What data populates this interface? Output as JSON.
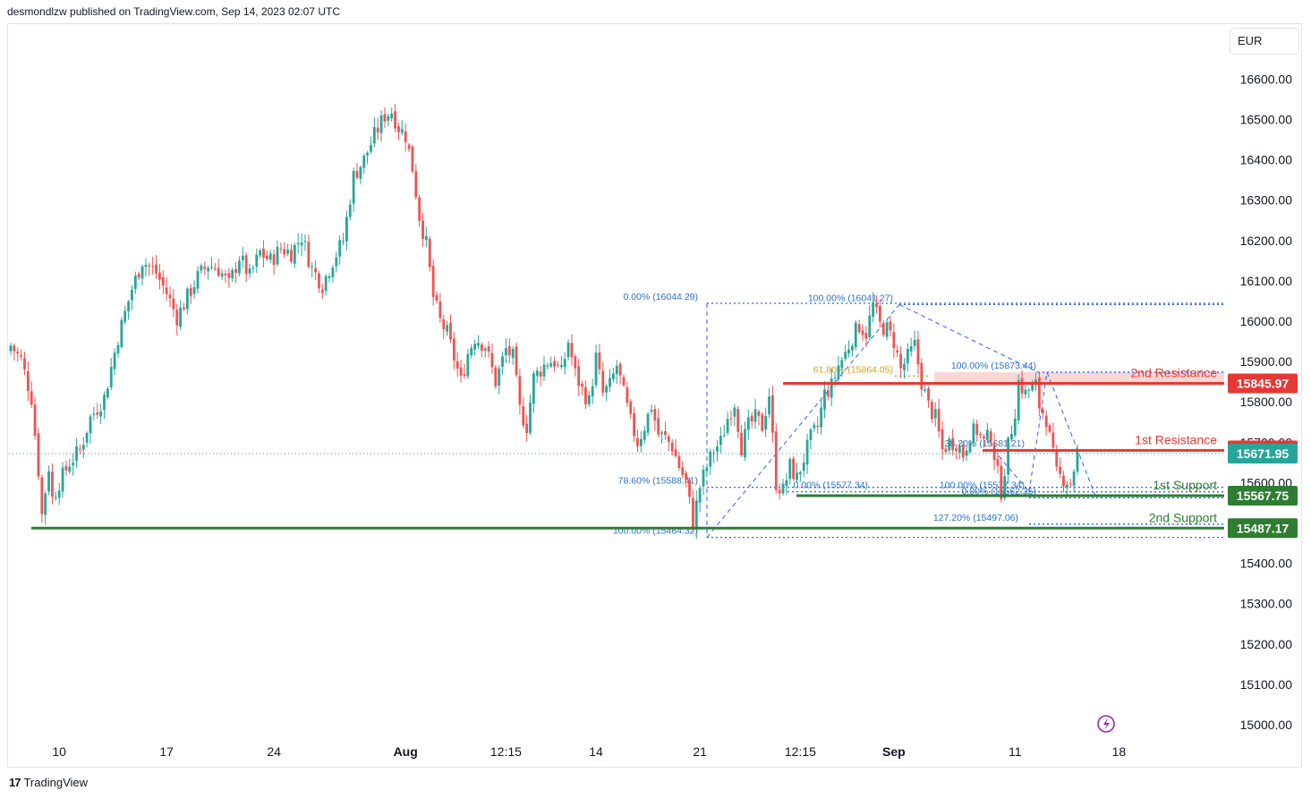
{
  "header": {
    "published": "desmondlzw published on TradingView.com, Sep 14, 2023 02:07 UTC"
  },
  "currency": "EUR",
  "footer": {
    "brand": "TradingView",
    "logo": "17"
  },
  "colors": {
    "up": "#26a69a",
    "down": "#ef5350",
    "fib": "#2962ff",
    "fib_text": "#2a72c8",
    "fib_gold": "#e0a10d",
    "resistance": "#e53935",
    "support": "#2e7d32",
    "resistance_zone": "#f8c9c3",
    "last_price": "#26a69a"
  },
  "chart_data": {
    "type": "candlestick",
    "ylim": [
      14950,
      16680
    ],
    "yticks": [
      15000,
      15100,
      15200,
      15300,
      15400,
      15500,
      15600,
      15700,
      15800,
      15900,
      16000,
      16100,
      16200,
      16300,
      16400,
      16500,
      16600
    ],
    "ytick_labels": [
      "15000.00",
      "15100.00",
      "15200.00",
      "15300.00",
      "15400.00",
      "15500.00",
      "15600.00",
      "15700.00",
      "15800.00",
      "15900.00",
      "16000.00",
      "16100.00",
      "16200.00",
      "16300.00",
      "16400.00",
      "16500.00",
      "16600.00"
    ],
    "xticks": [
      {
        "label": "10",
        "bar": 14
      },
      {
        "label": "17",
        "bar": 45
      },
      {
        "label": "24",
        "bar": 76
      },
      {
        "label": "Aug",
        "bar": 114,
        "bold": true
      },
      {
        "label": "12:15",
        "bar": 143
      },
      {
        "label": "14",
        "bar": 169
      },
      {
        "label": "21",
        "bar": 199
      },
      {
        "label": "12:15",
        "bar": 228
      },
      {
        "label": "Sep",
        "bar": 255,
        "bold": true
      },
      {
        "label": "11",
        "bar": 290
      },
      {
        "label": "18",
        "bar": 320
      }
    ],
    "key_points": [
      [
        0,
        15940
      ],
      [
        3,
        15905
      ],
      [
        6,
        15810
      ],
      [
        8,
        15630
      ],
      [
        9,
        15520
      ],
      [
        11,
        15640
      ],
      [
        12,
        15560
      ],
      [
        14,
        15600
      ],
      [
        17,
        15650
      ],
      [
        20,
        15680
      ],
      [
        23,
        15760
      ],
      [
        27,
        15810
      ],
      [
        31,
        15960
      ],
      [
        35,
        16080
      ],
      [
        38,
        16150
      ],
      [
        42,
        16120
      ],
      [
        45,
        16070
      ],
      [
        48,
        16010
      ],
      [
        51,
        16060
      ],
      [
        54,
        16110
      ],
      [
        57,
        16140
      ],
      [
        60,
        16130
      ],
      [
        63,
        16090
      ],
      [
        66,
        16160
      ],
      [
        69,
        16110
      ],
      [
        72,
        16170
      ],
      [
        75,
        16150
      ],
      [
        78,
        16180
      ],
      [
        81,
        16170
      ],
      [
        84,
        16210
      ],
      [
        87,
        16130
      ],
      [
        90,
        16090
      ],
      [
        93,
        16150
      ],
      [
        96,
        16200
      ],
      [
        99,
        16360
      ],
      [
        102,
        16400
      ],
      [
        105,
        16460
      ],
      [
        108,
        16510
      ],
      [
        110,
        16520
      ],
      [
        112,
        16480
      ],
      [
        114,
        16460
      ],
      [
        116,
        16380
      ],
      [
        118,
        16260
      ],
      [
        120,
        16190
      ],
      [
        122,
        16060
      ],
      [
        124,
        16000
      ],
      [
        126,
        15970
      ],
      [
        128,
        15910
      ],
      [
        130,
        15850
      ],
      [
        132,
        15920
      ],
      [
        134,
        15960
      ],
      [
        137,
        15940
      ],
      [
        140,
        15850
      ],
      [
        143,
        15930
      ],
      [
        145,
        15910
      ],
      [
        147,
        15780
      ],
      [
        149,
        15740
      ],
      [
        151,
        15860
      ],
      [
        153,
        15880
      ],
      [
        155,
        15900
      ],
      [
        157,
        15900
      ],
      [
        159,
        15870
      ],
      [
        161,
        15950
      ],
      [
        163,
        15870
      ],
      [
        165,
        15830
      ],
      [
        167,
        15800
      ],
      [
        169,
        15910
      ],
      [
        171,
        15820
      ],
      [
        173,
        15840
      ],
      [
        175,
        15890
      ],
      [
        177,
        15820
      ],
      [
        179,
        15750
      ],
      [
        181,
        15700
      ],
      [
        183,
        15740
      ],
      [
        185,
        15790
      ],
      [
        187,
        15720
      ],
      [
        189,
        15710
      ],
      [
        191,
        15690
      ],
      [
        193,
        15640
      ],
      [
        195,
        15600
      ],
      [
        197,
        15500
      ],
      [
        199,
        15590
      ],
      [
        201,
        15640
      ],
      [
        203,
        15680
      ],
      [
        205,
        15700
      ],
      [
        207,
        15760
      ],
      [
        209,
        15800
      ],
      [
        211,
        15690
      ],
      [
        213,
        15740
      ],
      [
        215,
        15760
      ],
      [
        217,
        15740
      ],
      [
        219,
        15820
      ],
      [
        221,
        15600
      ],
      [
        223,
        15580
      ],
      [
        225,
        15640
      ],
      [
        227,
        15610
      ],
      [
        229,
        15660
      ],
      [
        231,
        15710
      ],
      [
        233,
        15740
      ],
      [
        235,
        15820
      ],
      [
        237,
        15840
      ],
      [
        239,
        15890
      ],
      [
        241,
        15920
      ],
      [
        243,
        15960
      ],
      [
        245,
        15990
      ],
      [
        247,
        15970
      ],
      [
        249,
        16040
      ],
      [
        251,
        15990
      ],
      [
        253,
        15980
      ],
      [
        255,
        15950
      ],
      [
        257,
        15880
      ],
      [
        259,
        15910
      ],
      [
        261,
        15940
      ],
      [
        263,
        15850
      ],
      [
        265,
        15790
      ],
      [
        267,
        15760
      ],
      [
        269,
        15680
      ],
      [
        271,
        15700
      ],
      [
        273,
        15700
      ],
      [
        275,
        15670
      ],
      [
        277,
        15720
      ],
      [
        279,
        15730
      ],
      [
        281,
        15700
      ],
      [
        283,
        15720
      ],
      [
        285,
        15620
      ],
      [
        286,
        15580
      ],
      [
        288,
        15690
      ],
      [
        290,
        15780
      ],
      [
        291,
        15850
      ],
      [
        293,
        15820
      ],
      [
        294,
        15830
      ],
      [
        296,
        15840
      ],
      [
        297,
        15790
      ],
      [
        299,
        15760
      ],
      [
        300,
        15710
      ],
      [
        302,
        15620
      ],
      [
        304,
        15610
      ],
      [
        306,
        15600
      ],
      [
        308,
        15670
      ]
    ],
    "fib_levels": [
      {
        "label": "0.00% (16044.29)",
        "value": 16044.29
      },
      {
        "label": "100.00% (16041.27)",
        "value": 16041.27
      },
      {
        "label": "61.80% (15864.05)",
        "value": 15864.05
      },
      {
        "label": "100.00% (15873.44)",
        "value": 15873.44
      },
      {
        "label": "38.20% (15681.21)",
        "value": 15681.21
      },
      {
        "label": "78.60% (15588.41)",
        "value": 15588.41
      },
      {
        "label": "0.00% (15577.34)",
        "value": 15577.34
      },
      {
        "label": "100.00% (15577.34)",
        "value": 15577.34
      },
      {
        "label": "0.00% (15562.35)",
        "value": 15562.35
      },
      {
        "label": "127.20% (15497.06)",
        "value": 15497.06
      },
      {
        "label": "100.00% (15464.32)",
        "value": 15464.32
      }
    ],
    "levels": [
      {
        "name": "2nd Resistance",
        "value": 15845.97,
        "tag": "15845.97",
        "kind": "resistance"
      },
      {
        "name": "1st Resistance",
        "value": 15679.78,
        "tag": "15679.78",
        "kind": "resistance"
      },
      {
        "name": "1st Support",
        "value": 15567.75,
        "tag": "15567.75",
        "kind": "support"
      },
      {
        "name": "2nd Support",
        "value": 15487.17,
        "tag": "15487.17",
        "kind": "support"
      }
    ],
    "last_price": {
      "value": 15671.95,
      "tag": "15671.95"
    },
    "resistance_zone": [
      15845.97,
      15873.44
    ]
  }
}
